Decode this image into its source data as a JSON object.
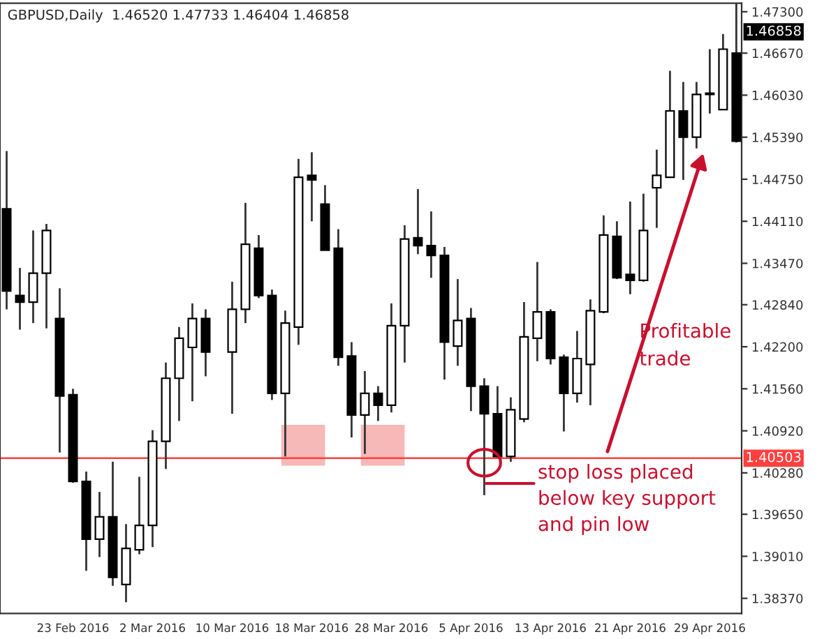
{
  "chart_data": {
    "type": "candlestick",
    "title": "GBPUSD,Daily  1.46520 1.47733 1.46404 1.46858",
    "categories": [
      null,
      null,
      null,
      null,
      null,
      "23 Feb 2016",
      null,
      null,
      null,
      null,
      null,
      "2 Mar 2016",
      null,
      null,
      null,
      null,
      null,
      "10 Mar 2016",
      null,
      null,
      null,
      null,
      null,
      "18 Mar 2016",
      null,
      null,
      null,
      null,
      null,
      "28 Mar 2016",
      null,
      null,
      null,
      null,
      null,
      "5 Apr 2016",
      null,
      null,
      null,
      null,
      null,
      "13 Apr 2016",
      null,
      null,
      null,
      null,
      null,
      "21 Apr 2016",
      null,
      null,
      null,
      null,
      null,
      "29 Apr 2016",
      null,
      null
    ],
    "ohlc": [
      [
        1.443,
        1.4518,
        1.4277,
        1.4305
      ],
      [
        1.4298,
        1.434,
        1.4246,
        1.4288
      ],
      [
        1.4288,
        1.4397,
        1.4256,
        1.4332
      ],
      [
        1.4332,
        1.4407,
        1.4248,
        1.4397
      ],
      [
        1.4263,
        1.4309,
        1.4059,
        1.4145
      ],
      [
        1.4147,
        1.4156,
        1.4013,
        1.4015
      ],
      [
        1.4015,
        1.403,
        1.3879,
        1.3927
      ],
      [
        1.3927,
        1.3999,
        1.39,
        1.3961
      ],
      [
        1.3961,
        1.4045,
        1.3856,
        1.3869
      ],
      [
        1.3858,
        1.395,
        1.3831,
        1.3913
      ],
      [
        1.3911,
        1.4022,
        1.3904,
        1.3948
      ],
      [
        1.3948,
        1.4093,
        1.3915,
        1.4076
      ],
      [
        1.4076,
        1.4196,
        1.4034,
        1.4172
      ],
      [
        1.4172,
        1.425,
        1.4107,
        1.4233
      ],
      [
        1.4219,
        1.4286,
        1.4137,
        1.4263
      ],
      [
        1.4263,
        1.4277,
        1.4175,
        1.4212
      ],
      null,
      [
        1.4212,
        1.4319,
        1.4118,
        1.4277
      ],
      [
        1.4277,
        1.4439,
        1.4256,
        1.4376
      ],
      [
        1.437,
        1.439,
        1.4294,
        1.4298
      ],
      [
        1.4298,
        1.4307,
        1.4139,
        1.4149
      ],
      [
        1.4149,
        1.4275,
        1.4053,
        1.4256
      ],
      [
        1.425,
        1.4506,
        1.4223,
        1.4478
      ],
      [
        1.4481,
        1.4516,
        1.4411,
        1.4474
      ],
      [
        1.4437,
        1.4466,
        1.4367,
        1.4367
      ],
      [
        1.437,
        1.4399,
        1.4191,
        1.4204
      ],
      [
        1.4206,
        1.4227,
        1.4082,
        1.4116
      ],
      [
        1.4116,
        1.4183,
        1.4057,
        1.4149
      ],
      [
        1.4149,
        1.416,
        1.4107,
        1.4131
      ],
      [
        1.4131,
        1.4286,
        1.412,
        1.4252
      ],
      [
        1.4252,
        1.4405,
        1.4196,
        1.4384
      ],
      [
        1.4386,
        1.446,
        1.4361,
        1.4374
      ],
      [
        1.4374,
        1.4426,
        1.4325,
        1.4359
      ],
      [
        1.4359,
        1.4372,
        1.417,
        1.4227
      ],
      [
        1.4221,
        1.4323,
        1.4191,
        1.426
      ],
      [
        1.4263,
        1.4279,
        1.4122,
        1.416
      ],
      [
        1.416,
        1.4172,
        1.3994,
        1.4118
      ],
      [
        1.4118,
        1.416,
        1.4051,
        1.4053
      ],
      [
        1.4053,
        1.4143,
        1.4045,
        1.4124
      ],
      [
        1.411,
        1.4288,
        1.4105,
        1.4235
      ],
      [
        1.4233,
        1.4349,
        1.4198,
        1.4273
      ],
      [
        1.4273,
        1.4277,
        1.4193,
        1.4202
      ],
      [
        1.4204,
        1.4208,
        1.4091,
        1.4149
      ],
      [
        1.4149,
        1.4244,
        1.4135,
        1.4202
      ],
      [
        1.4193,
        1.4292,
        1.4131,
        1.4275
      ],
      [
        1.4273,
        1.442,
        1.4271,
        1.439
      ],
      [
        1.4388,
        1.4411,
        1.4323,
        1.4325
      ],
      [
        1.433,
        1.4441,
        1.43,
        1.4321
      ],
      [
        1.4321,
        1.4453,
        1.4319,
        1.4397
      ],
      [
        1.4462,
        1.452,
        1.4401,
        1.4481
      ],
      [
        1.4478,
        1.464,
        1.4478,
        1.4579
      ],
      [
        1.4579,
        1.4623,
        1.4474,
        1.4539
      ],
      [
        1.4539,
        1.4623,
        1.4522,
        1.4604
      ],
      [
        1.4604,
        1.4673,
        1.4575,
        1.4606
      ],
      [
        1.4581,
        1.4696,
        1.4581,
        1.4673
      ],
      [
        1.4667,
        1.4743,
        1.4531,
        1.4533
      ]
    ],
    "ylim": [
      1.3814,
      1.4743
    ],
    "yticks": [
      {
        "value": 1.473,
        "label": "1.47300"
      },
      {
        "value": 1.4667,
        "label": "1.46670"
      },
      {
        "value": 1.4603,
        "label": "1.46030"
      },
      {
        "value": 1.4539,
        "label": "1.45390"
      },
      {
        "value": 1.4475,
        "label": "1.44750"
      },
      {
        "value": 1.4411,
        "label": "1.44110"
      },
      {
        "value": 1.4347,
        "label": "1.43470"
      },
      {
        "value": 1.4284,
        "label": "1.42840"
      },
      {
        "value": 1.422,
        "label": "1.42200"
      },
      {
        "value": 1.4156,
        "label": "1.41560"
      },
      {
        "value": 1.4092,
        "label": "1.40920"
      },
      {
        "value": 1.4028,
        "label": "1.40280"
      },
      {
        "value": 1.3965,
        "label": "1.39650"
      },
      {
        "value": 1.3901,
        "label": "1.39010"
      },
      {
        "value": 1.3837,
        "label": "1.38370"
      }
    ],
    "ref_lines": [
      {
        "axis": "y",
        "value": 1.40503,
        "label": "1.40503",
        "color": "#ff4040"
      }
    ],
    "annotations": [
      "1.46858",
      "Profitable\ntrade",
      "stop loss placed\nbelow key support\nand pin low"
    ],
    "grid": false
  }
}
